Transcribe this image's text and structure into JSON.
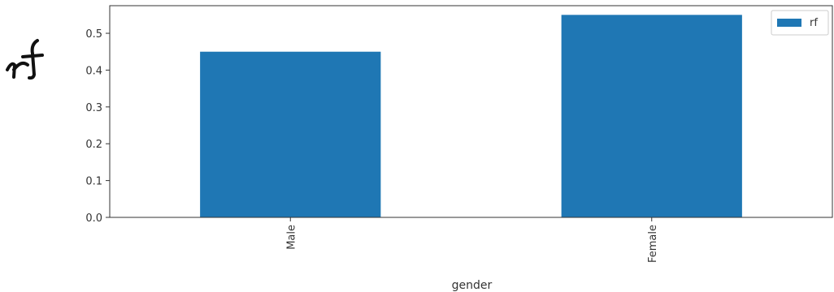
{
  "chart_data": {
    "type": "bar",
    "categories": [
      "Male",
      "Female"
    ],
    "series": [
      {
        "name": "rf",
        "values": [
          0.45,
          0.55
        ],
        "color": "#1f77b4"
      }
    ],
    "xlabel": "gender",
    "ylabel": "",
    "ylim": [
      0,
      0.575
    ],
    "yticks": [
      0.0,
      0.1,
      0.2,
      0.3,
      0.4,
      0.5
    ],
    "ytick_labels": [
      "0.0",
      "0.1",
      "0.2",
      "0.3",
      "0.4",
      "0.5"
    ],
    "grid": false,
    "legend": {
      "placement": "top-right",
      "entries": [
        "rf"
      ]
    },
    "annotations": [
      {
        "text": "rf",
        "style": "handwritten",
        "position": "left of y-axis"
      }
    ]
  }
}
